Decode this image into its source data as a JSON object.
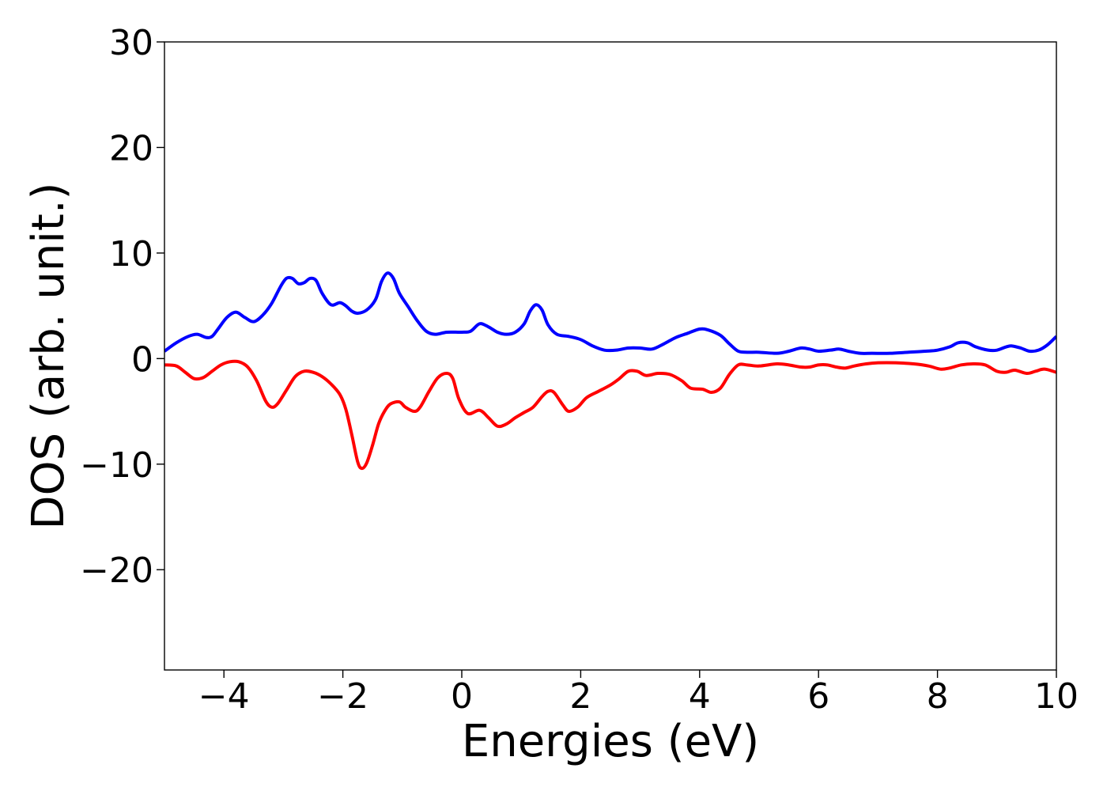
{
  "chart_data": {
    "type": "line",
    "title": "",
    "xlabel": "Energies (eV)",
    "ylabel": "DOS (arb. unit.)",
    "xlim": [
      -5,
      10
    ],
    "ylim": [
      -29.5,
      30
    ],
    "xticks": [
      -4,
      -2,
      0,
      2,
      4,
      6,
      8,
      10
    ],
    "xtick_labels": [
      "−4",
      "−2",
      "0",
      "2",
      "4",
      "6",
      "8",
      "10"
    ],
    "yticks": [
      -20,
      -10,
      0,
      10,
      20,
      30
    ],
    "ytick_labels": [
      "−20",
      "−10",
      "0",
      "10",
      "20",
      "30"
    ],
    "grid": false,
    "legend": "none",
    "series": [
      {
        "color": "#0000ff",
        "points": [
          [
            -5.0,
            0.7
          ],
          [
            -4.8,
            1.5
          ],
          [
            -4.6,
            2.1
          ],
          [
            -4.45,
            2.3
          ],
          [
            -4.3,
            2.0
          ],
          [
            -4.2,
            2.1
          ],
          [
            -4.1,
            2.8
          ],
          [
            -3.95,
            3.9
          ],
          [
            -3.8,
            4.4
          ],
          [
            -3.65,
            3.9
          ],
          [
            -3.5,
            3.5
          ],
          [
            -3.35,
            4.1
          ],
          [
            -3.2,
            5.2
          ],
          [
            -3.05,
            6.8
          ],
          [
            -2.95,
            7.6
          ],
          [
            -2.85,
            7.6
          ],
          [
            -2.75,
            7.1
          ],
          [
            -2.65,
            7.2
          ],
          [
            -2.55,
            7.6
          ],
          [
            -2.45,
            7.4
          ],
          [
            -2.35,
            6.2
          ],
          [
            -2.2,
            5.1
          ],
          [
            -2.05,
            5.3
          ],
          [
            -1.95,
            5.0
          ],
          [
            -1.85,
            4.5
          ],
          [
            -1.75,
            4.3
          ],
          [
            -1.6,
            4.6
          ],
          [
            -1.45,
            5.6
          ],
          [
            -1.35,
            7.3
          ],
          [
            -1.25,
            8.1
          ],
          [
            -1.15,
            7.6
          ],
          [
            -1.05,
            6.2
          ],
          [
            -0.9,
            4.9
          ],
          [
            -0.75,
            3.6
          ],
          [
            -0.6,
            2.6
          ],
          [
            -0.45,
            2.3
          ],
          [
            -0.25,
            2.5
          ],
          [
            0.0,
            2.5
          ],
          [
            0.15,
            2.6
          ],
          [
            0.3,
            3.3
          ],
          [
            0.45,
            3.0
          ],
          [
            0.6,
            2.5
          ],
          [
            0.75,
            2.3
          ],
          [
            0.9,
            2.5
          ],
          [
            1.05,
            3.3
          ],
          [
            1.15,
            4.5
          ],
          [
            1.25,
            5.1
          ],
          [
            1.35,
            4.6
          ],
          [
            1.45,
            3.2
          ],
          [
            1.6,
            2.3
          ],
          [
            1.8,
            2.1
          ],
          [
            2.0,
            1.8
          ],
          [
            2.2,
            1.2
          ],
          [
            2.4,
            0.8
          ],
          [
            2.6,
            0.8
          ],
          [
            2.8,
            1.0
          ],
          [
            3.0,
            1.0
          ],
          [
            3.2,
            0.9
          ],
          [
            3.4,
            1.4
          ],
          [
            3.6,
            2.0
          ],
          [
            3.8,
            2.4
          ],
          [
            4.0,
            2.8
          ],
          [
            4.15,
            2.7
          ],
          [
            4.35,
            2.2
          ],
          [
            4.5,
            1.4
          ],
          [
            4.65,
            0.7
          ],
          [
            4.8,
            0.6
          ],
          [
            5.0,
            0.6
          ],
          [
            5.3,
            0.5
          ],
          [
            5.5,
            0.7
          ],
          [
            5.7,
            1.0
          ],
          [
            5.85,
            0.9
          ],
          [
            6.0,
            0.7
          ],
          [
            6.2,
            0.8
          ],
          [
            6.35,
            0.9
          ],
          [
            6.5,
            0.7
          ],
          [
            6.7,
            0.5
          ],
          [
            6.9,
            0.5
          ],
          [
            7.2,
            0.5
          ],
          [
            7.5,
            0.6
          ],
          [
            7.8,
            0.7
          ],
          [
            8.0,
            0.8
          ],
          [
            8.2,
            1.1
          ],
          [
            8.35,
            1.5
          ],
          [
            8.5,
            1.5
          ],
          [
            8.65,
            1.1
          ],
          [
            8.85,
            0.8
          ],
          [
            9.0,
            0.8
          ],
          [
            9.15,
            1.1
          ],
          [
            9.25,
            1.2
          ],
          [
            9.4,
            1.0
          ],
          [
            9.55,
            0.7
          ],
          [
            9.7,
            0.8
          ],
          [
            9.85,
            1.3
          ],
          [
            10.0,
            2.1
          ]
        ]
      },
      {
        "color": "#ff0000",
        "points": [
          [
            -5.0,
            -0.6
          ],
          [
            -4.8,
            -0.7
          ],
          [
            -4.65,
            -1.3
          ],
          [
            -4.5,
            -1.9
          ],
          [
            -4.35,
            -1.8
          ],
          [
            -4.2,
            -1.2
          ],
          [
            -4.05,
            -0.6
          ],
          [
            -3.9,
            -0.3
          ],
          [
            -3.75,
            -0.3
          ],
          [
            -3.6,
            -0.8
          ],
          [
            -3.45,
            -2.1
          ],
          [
            -3.3,
            -4.0
          ],
          [
            -3.2,
            -4.6
          ],
          [
            -3.1,
            -4.3
          ],
          [
            -2.95,
            -3.0
          ],
          [
            -2.8,
            -1.7
          ],
          [
            -2.65,
            -1.2
          ],
          [
            -2.5,
            -1.3
          ],
          [
            -2.35,
            -1.7
          ],
          [
            -2.2,
            -2.4
          ],
          [
            -2.05,
            -3.4
          ],
          [
            -1.95,
            -4.8
          ],
          [
            -1.85,
            -7.2
          ],
          [
            -1.75,
            -9.8
          ],
          [
            -1.68,
            -10.4
          ],
          [
            -1.6,
            -9.9
          ],
          [
            -1.5,
            -8.2
          ],
          [
            -1.4,
            -6.2
          ],
          [
            -1.3,
            -5.0
          ],
          [
            -1.2,
            -4.3
          ],
          [
            -1.05,
            -4.1
          ],
          [
            -0.95,
            -4.6
          ],
          [
            -0.8,
            -5.0
          ],
          [
            -0.7,
            -4.6
          ],
          [
            -0.55,
            -3.1
          ],
          [
            -0.4,
            -1.8
          ],
          [
            -0.25,
            -1.4
          ],
          [
            -0.15,
            -1.9
          ],
          [
            -0.05,
            -3.8
          ],
          [
            0.1,
            -5.2
          ],
          [
            0.3,
            -4.9
          ],
          [
            0.45,
            -5.6
          ],
          [
            0.6,
            -6.4
          ],
          [
            0.75,
            -6.2
          ],
          [
            0.9,
            -5.6
          ],
          [
            1.05,
            -5.1
          ],
          [
            1.2,
            -4.6
          ],
          [
            1.35,
            -3.6
          ],
          [
            1.45,
            -3.1
          ],
          [
            1.55,
            -3.2
          ],
          [
            1.7,
            -4.4
          ],
          [
            1.8,
            -5.0
          ],
          [
            1.95,
            -4.6
          ],
          [
            2.1,
            -3.7
          ],
          [
            2.3,
            -3.1
          ],
          [
            2.5,
            -2.5
          ],
          [
            2.65,
            -1.9
          ],
          [
            2.8,
            -1.2
          ],
          [
            2.95,
            -1.2
          ],
          [
            3.1,
            -1.6
          ],
          [
            3.3,
            -1.4
          ],
          [
            3.5,
            -1.5
          ],
          [
            3.7,
            -2.1
          ],
          [
            3.85,
            -2.8
          ],
          [
            4.05,
            -2.9
          ],
          [
            4.2,
            -3.2
          ],
          [
            4.35,
            -2.8
          ],
          [
            4.5,
            -1.5
          ],
          [
            4.65,
            -0.6
          ],
          [
            4.8,
            -0.6
          ],
          [
            5.0,
            -0.7
          ],
          [
            5.3,
            -0.5
          ],
          [
            5.5,
            -0.6
          ],
          [
            5.7,
            -0.8
          ],
          [
            5.85,
            -0.8
          ],
          [
            6.0,
            -0.6
          ],
          [
            6.15,
            -0.6
          ],
          [
            6.3,
            -0.8
          ],
          [
            6.45,
            -0.9
          ],
          [
            6.6,
            -0.7
          ],
          [
            6.8,
            -0.5
          ],
          [
            7.0,
            -0.4
          ],
          [
            7.3,
            -0.4
          ],
          [
            7.6,
            -0.5
          ],
          [
            7.85,
            -0.7
          ],
          [
            8.05,
            -1.0
          ],
          [
            8.2,
            -0.9
          ],
          [
            8.4,
            -0.6
          ],
          [
            8.6,
            -0.5
          ],
          [
            8.8,
            -0.6
          ],
          [
            9.0,
            -1.2
          ],
          [
            9.15,
            -1.3
          ],
          [
            9.3,
            -1.1
          ],
          [
            9.5,
            -1.4
          ],
          [
            9.65,
            -1.2
          ],
          [
            9.8,
            -1.0
          ],
          [
            10.0,
            -1.3
          ]
        ]
      }
    ]
  }
}
